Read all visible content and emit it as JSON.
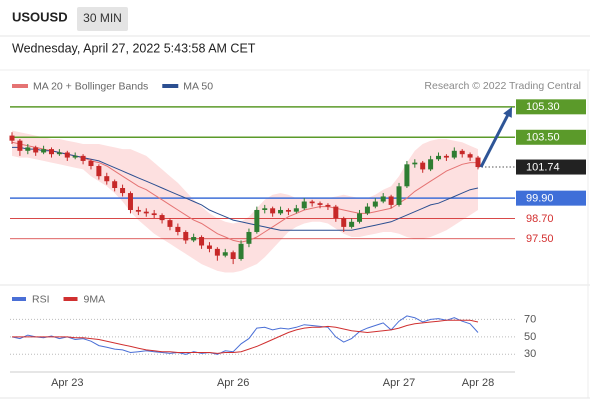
{
  "header": {
    "symbol": "USOUSD",
    "timeframe": "30 MIN",
    "datetime": "Wednesday, April 27, 2022 5:43:58 AM CET"
  },
  "chart_data": [
    {
      "type": "candlestick",
      "credit": "Research © 2022 Trading Central",
      "categories": [
        null,
        null,
        null,
        null,
        null,
        null,
        null,
        "Apr 23",
        null,
        null,
        null,
        null,
        null,
        null,
        null,
        null,
        null,
        null,
        null,
        null,
        null,
        null,
        null,
        null,
        null,
        null,
        null,
        null,
        "Apr 26",
        null,
        null,
        null,
        null,
        null,
        null,
        null,
        null,
        null,
        null,
        null,
        null,
        null,
        null,
        null,
        null,
        null,
        null,
        null,
        null,
        "Apr 27",
        null,
        null,
        null,
        null,
        null,
        null,
        null,
        null,
        null,
        "Apr 28"
      ],
      "candles": [
        [
          103.6,
          103.8,
          103.1,
          103.3
        ],
        [
          103.3,
          103.4,
          102.4,
          102.7
        ],
        [
          102.7,
          103.1,
          102.5,
          102.9
        ],
        [
          102.9,
          103.0,
          102.4,
          102.6
        ],
        [
          102.6,
          103.0,
          102.5,
          102.8
        ],
        [
          102.8,
          102.9,
          102.3,
          102.5
        ],
        [
          102.5,
          102.8,
          102.4,
          102.6
        ],
        [
          102.6,
          102.7,
          102.1,
          102.3
        ],
        [
          102.3,
          102.6,
          102.2,
          102.4
        ],
        [
          102.4,
          102.5,
          101.9,
          102.1
        ],
        [
          102.1,
          102.2,
          101.6,
          101.8
        ],
        [
          101.8,
          101.9,
          101.0,
          101.2
        ],
        [
          101.2,
          101.4,
          100.7,
          100.9
        ],
        [
          100.9,
          101.0,
          100.3,
          100.5
        ],
        [
          100.5,
          100.7,
          100.0,
          100.2
        ],
        [
          100.2,
          100.3,
          99.0,
          99.2
        ],
        [
          99.2,
          99.4,
          98.9,
          99.1
        ],
        [
          99.1,
          99.3,
          98.8,
          99.0
        ],
        [
          99.0,
          99.2,
          98.7,
          98.9
        ],
        [
          98.9,
          99.0,
          98.4,
          98.6
        ],
        [
          98.6,
          98.7,
          98.0,
          98.2
        ],
        [
          98.2,
          98.4,
          97.7,
          97.9
        ],
        [
          97.9,
          98.0,
          97.2,
          97.4
        ],
        [
          97.4,
          97.8,
          97.3,
          97.6
        ],
        [
          97.6,
          97.7,
          96.9,
          97.1
        ],
        [
          97.1,
          97.3,
          96.7,
          96.9
        ],
        [
          96.9,
          97.0,
          96.2,
          96.5
        ],
        [
          96.5,
          96.9,
          96.4,
          96.7
        ],
        [
          96.7,
          96.8,
          96.0,
          96.3
        ],
        [
          96.3,
          97.4,
          96.2,
          97.2
        ],
        [
          97.2,
          98.1,
          97.0,
          97.9
        ],
        [
          97.9,
          99.4,
          97.8,
          99.2
        ],
        [
          99.2,
          99.5,
          99.0,
          99.3
        ],
        [
          99.3,
          99.4,
          98.8,
          99.0
        ],
        [
          99.0,
          99.4,
          98.9,
          99.2
        ],
        [
          99.2,
          99.3,
          98.9,
          99.1
        ],
        [
          99.1,
          99.5,
          99.0,
          99.3
        ],
        [
          99.3,
          99.9,
          99.2,
          99.7
        ],
        [
          99.7,
          99.8,
          99.4,
          99.6
        ],
        [
          99.6,
          99.7,
          99.3,
          99.5
        ],
        [
          99.5,
          99.6,
          99.2,
          99.4
        ],
        [
          99.4,
          99.5,
          98.5,
          98.7
        ],
        [
          98.7,
          98.8,
          97.9,
          98.2
        ],
        [
          98.2,
          98.7,
          98.1,
          98.5
        ],
        [
          98.5,
          99.2,
          98.4,
          99.0
        ],
        [
          99.0,
          99.6,
          98.9,
          99.4
        ],
        [
          99.4,
          99.9,
          99.3,
          99.7
        ],
        [
          99.7,
          100.2,
          99.6,
          100.0
        ],
        [
          100.0,
          100.1,
          99.3,
          99.5
        ],
        [
          99.5,
          100.8,
          99.4,
          100.6
        ],
        [
          100.6,
          102.1,
          100.5,
          101.9
        ],
        [
          101.9,
          102.2,
          101.7,
          102.0
        ],
        [
          102.0,
          102.1,
          101.4,
          101.6
        ],
        [
          101.6,
          102.4,
          101.5,
          102.2
        ],
        [
          102.2,
          102.6,
          102.1,
          102.4
        ],
        [
          102.4,
          102.5,
          102.1,
          102.3
        ],
        [
          102.3,
          102.9,
          102.2,
          102.7
        ],
        [
          102.7,
          102.8,
          102.3,
          102.5
        ],
        [
          102.5,
          102.6,
          102.1,
          102.3
        ],
        [
          102.3,
          102.4,
          101.6,
          101.74
        ]
      ],
      "up_color": "#2e7d32",
      "down_color": "#c62828",
      "series": [
        {
          "name": "MA 20 + Bollinger Bands",
          "color": "#e57373",
          "band_color": "#fde0e0",
          "values": [
            103.2,
            103.1,
            103.0,
            102.9,
            102.8,
            102.7,
            102.6,
            102.5,
            102.4,
            102.3,
            102.1,
            102.0,
            101.8,
            101.5,
            101.2,
            100.9,
            100.6,
            100.4,
            100.1,
            99.8,
            99.5,
            99.2,
            98.9,
            98.6,
            98.4,
            98.1,
            97.8,
            97.6,
            97.4,
            97.3,
            97.4,
            97.6,
            97.9,
            98.2,
            98.5,
            98.8,
            99.0,
            99.2,
            99.3,
            99.4,
            99.4,
            99.3,
            99.2,
            99.1,
            99.0,
            99.0,
            99.1,
            99.2,
            99.3,
            99.6,
            99.9,
            100.3,
            100.6,
            100.9,
            101.2,
            101.5,
            101.7,
            101.9,
            102.0,
            102.0
          ],
          "upper": [
            103.9,
            103.8,
            103.7,
            103.6,
            103.5,
            103.4,
            103.4,
            103.3,
            103.2,
            103.1,
            103.1,
            103.1,
            103.0,
            102.9,
            102.8,
            102.8,
            102.6,
            102.4,
            102.0,
            101.6,
            101.2,
            100.8,
            100.3,
            99.8,
            99.4,
            99.0,
            98.7,
            98.5,
            98.4,
            98.5,
            98.8,
            99.3,
            99.8,
            100.1,
            100.2,
            100.1,
            99.9,
            99.9,
            99.9,
            99.9,
            99.9,
            100.0,
            100.1,
            100.0,
            99.9,
            99.9,
            100.1,
            100.4,
            100.6,
            101.2,
            102.0,
            102.7,
            103.1,
            103.3,
            103.4,
            103.4,
            103.3,
            103.2,
            103.0,
            102.8
          ],
          "lower": [
            102.4,
            102.3,
            102.3,
            102.2,
            102.1,
            102.0,
            101.9,
            101.8,
            101.7,
            101.6,
            101.2,
            100.9,
            100.6,
            100.2,
            99.7,
            99.1,
            98.6,
            98.2,
            97.8,
            97.5,
            97.2,
            96.9,
            96.6,
            96.3,
            96.0,
            95.8,
            95.6,
            95.5,
            95.5,
            95.6,
            95.8,
            96.0,
            96.4,
            96.9,
            97.4,
            97.9,
            98.2,
            98.4,
            98.5,
            98.5,
            98.4,
            98.1,
            97.8,
            97.6,
            97.6,
            97.7,
            97.8,
            97.9,
            97.9,
            97.8,
            97.6,
            97.5,
            97.5,
            97.6,
            97.8,
            98.0,
            98.3,
            98.6,
            98.9,
            99.2
          ]
        },
        {
          "name": "MA 50",
          "color": "#2c4f91",
          "values": [
            102.9,
            102.9,
            102.8,
            102.8,
            102.7,
            102.7,
            102.6,
            102.5,
            102.4,
            102.3,
            102.2,
            102.1,
            101.9,
            101.7,
            101.5,
            101.3,
            101.1,
            100.9,
            100.7,
            100.5,
            100.3,
            100.1,
            99.9,
            99.7,
            99.5,
            99.2,
            99.0,
            98.8,
            98.6,
            98.5,
            98.4,
            98.3,
            98.2,
            98.1,
            98.0,
            98.0,
            98.0,
            98.0,
            98.0,
            98.0,
            98.0,
            98.0,
            98.0,
            98.0,
            98.1,
            98.2,
            98.3,
            98.4,
            98.5,
            98.7,
            98.9,
            99.1,
            99.3,
            99.5,
            99.6,
            99.8,
            100.0,
            100.2,
            100.4,
            100.5
          ]
        }
      ],
      "levels": [
        {
          "value": 105.3,
          "label": "105.30",
          "color": "#5b9a2a",
          "filled": true
        },
        {
          "value": 103.5,
          "label": "103.50",
          "color": "#5b9a2a",
          "filled": true
        },
        {
          "value": 101.74,
          "label": "101.74",
          "color": "#222222",
          "filled": true,
          "dotted": true
        },
        {
          "value": 99.9,
          "label": "99.90",
          "color": "#3f6fd8",
          "filled": true
        },
        {
          "value": 98.7,
          "label": "98.70",
          "color": "#d32f2f",
          "filled": false
        },
        {
          "value": 97.5,
          "label": "97.50",
          "color": "#d32f2f",
          "filled": false
        }
      ],
      "ylim": [
        95,
        106
      ]
    },
    {
      "type": "line",
      "series": [
        {
          "name": "RSI",
          "color": "#4a6fd6",
          "values": [
            50,
            48,
            52,
            50,
            49,
            51,
            48,
            50,
            47,
            48,
            45,
            40,
            38,
            36,
            35,
            32,
            33,
            34,
            33,
            32,
            31,
            32,
            30,
            33,
            31,
            32,
            30,
            34,
            33,
            42,
            48,
            60,
            61,
            58,
            60,
            59,
            61,
            64,
            63,
            62,
            61,
            50,
            44,
            48,
            56,
            60,
            63,
            66,
            58,
            68,
            74,
            72,
            67,
            70,
            71,
            69,
            72,
            68,
            65,
            55
          ]
        },
        {
          "name": "9MA",
          "color": "#d03030",
          "values": [
            50,
            50,
            50,
            50,
            50,
            50,
            50,
            50,
            49,
            49,
            48,
            47,
            45,
            43,
            41,
            39,
            37,
            35,
            34,
            33,
            33,
            32,
            32,
            32,
            32,
            32,
            31,
            32,
            32,
            33,
            36,
            39,
            43,
            47,
            51,
            55,
            58,
            60,
            61,
            61,
            62,
            61,
            59,
            57,
            56,
            55,
            56,
            57,
            58,
            60,
            63,
            65,
            66,
            67,
            68,
            69,
            69,
            69,
            69,
            67
          ]
        }
      ],
      "ylim": [
        20,
        90
      ],
      "yticks": [
        30,
        50,
        70
      ],
      "grid": true
    }
  ]
}
